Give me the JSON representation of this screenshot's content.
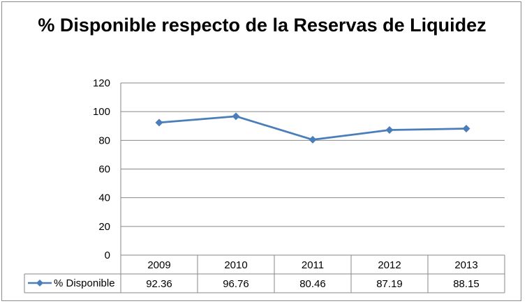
{
  "chart_data": {
    "type": "line",
    "title": "% Disponible respecto de la Reservas de Liquidez",
    "categories": [
      "2009",
      "2010",
      "2011",
      "2012",
      "2013"
    ],
    "series": [
      {
        "name": "% Disponible",
        "values": [
          92.36,
          96.76,
          80.46,
          87.19,
          88.15
        ]
      }
    ],
    "table_values": [
      "92.36",
      "96.76",
      "80.46",
      "87.19",
      "88.15"
    ],
    "ylim": [
      0,
      120
    ],
    "yticks": [
      0,
      20,
      40,
      60,
      80,
      100,
      120
    ],
    "grid": true,
    "data_table": true,
    "line_color": "#4a7ebb",
    "marker": "diamond"
  }
}
